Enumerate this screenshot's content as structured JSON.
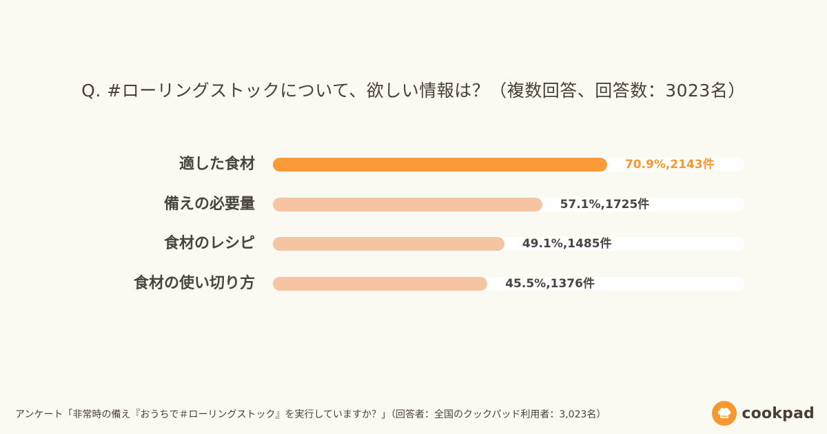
{
  "chart_data": {
    "type": "bar",
    "title": "Q. #ローリングストックについて、欲しい情報は？（複数回答、回答数：3023名）",
    "categories": [
      "適した食材",
      "備えの必要量",
      "食材のレシピ",
      "食材の使い切り方"
    ],
    "values": [
      70.9,
      57.1,
      49.1,
      45.5
    ],
    "counts": [
      2143,
      1725,
      1485,
      1376
    ],
    "data_labels": [
      "70.9%,2143件",
      "57.1%,1725件",
      "49.1%,1485件",
      "45.5%,1376件"
    ],
    "xlim": [
      0,
      100
    ],
    "unit": "%",
    "highlight_index": 0,
    "colors": {
      "highlight": "#fa9a38",
      "bar": "#f5c4a3",
      "track": "#ffffff",
      "highlight_text": "#f7972e",
      "text": "#4a4340"
    }
  },
  "footer": {
    "note": "アンケート「非常時の備え『おうちで＃ローリングストック』を実行していますか？」（回答者：全国のクックパッド利用者：3,023名）"
  },
  "brand": {
    "name": "cookpad",
    "icon": "chef-hat-icon",
    "color": "#f7972e"
  }
}
